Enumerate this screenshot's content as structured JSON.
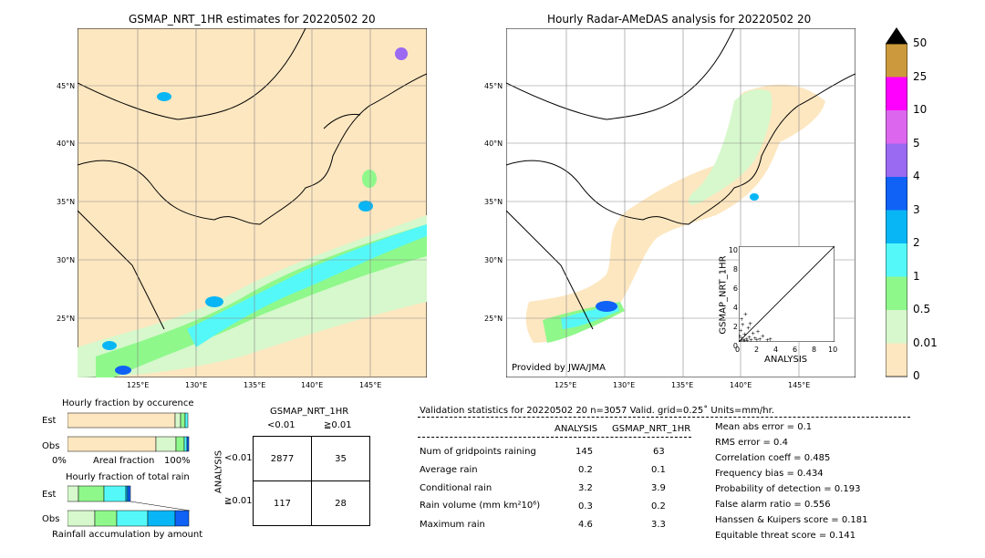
{
  "left_map": {
    "title": "GSMAP_NRT_1HR estimates for 20220502 20",
    "lat_labels": [
      "45°N",
      "40°N",
      "35°N",
      "30°N",
      "25°N"
    ],
    "lon_labels": [
      "125°E",
      "130°E",
      "135°E",
      "140°E",
      "145°E"
    ]
  },
  "right_map": {
    "title": "Hourly Radar-AMeDAS analysis for 20220502 20",
    "lat_labels": [
      "45°N",
      "40°N",
      "35°N",
      "30°N",
      "25°N"
    ],
    "lon_labels": [
      "125°E",
      "130°E",
      "135°E",
      "140°E",
      "145°E"
    ],
    "credit": "Provided by JWA/JMA"
  },
  "scatter_inset": {
    "xlabel": "ANALYSIS",
    "ylabel": "GSMAP_NRT_1HR",
    "ticks": [
      "0",
      "2",
      "4",
      "6",
      "8",
      "10"
    ],
    "y_ticks": [
      "0",
      "2",
      "4",
      "6",
      "8",
      "10"
    ]
  },
  "colorbar": {
    "labels": [
      "50",
      "25",
      "10",
      "5",
      "4",
      "3",
      "2",
      "1",
      "0.5",
      "0.01",
      "0"
    ],
    "colors": [
      "#cc9a3c",
      "#ff00ff",
      "#dd66ee",
      "#9a6af2",
      "#0f62f5",
      "#08b6f5",
      "#55f8f8",
      "#8ff88b",
      "#d6f8cc",
      "#fde7c0"
    ]
  },
  "fraction_occurrence": {
    "title": "Hourly fraction by occurence",
    "rows": [
      "Est",
      "Obs"
    ],
    "x_left": "0%",
    "x_mid": "Areal fraction",
    "x_right": "100%"
  },
  "fraction_total": {
    "title": "Hourly fraction of total rain",
    "rows": [
      "Est",
      "Obs"
    ],
    "footer": "Rainfall accumulation by amount"
  },
  "contingency": {
    "col_title": "GSMAP_NRT_1HR",
    "col_labels": [
      "<0.01",
      "≧0.01"
    ],
    "row_title": "ANALYSIS",
    "row_labels": [
      "<0.01",
      "≧0.01"
    ],
    "cells": [
      [
        "2877",
        "35"
      ],
      [
        "117",
        "28"
      ]
    ]
  },
  "validation": {
    "header": "Validation statistics for 20220502 20  n=3057 Valid. grid=0.25˚ Units=mm/hr.",
    "col1": "ANALYSIS",
    "col2": "GSMAP_NRT_1HR",
    "rows": [
      {
        "label": "Num of gridpoints raining",
        "a": "145",
        "b": "63"
      },
      {
        "label": "Average rain",
        "a": "0.2",
        "b": "0.1"
      },
      {
        "label": "Conditional rain",
        "a": "3.2",
        "b": "3.9"
      },
      {
        "label": "Rain volume (mm km²10⁶)",
        "a": "0.3",
        "b": "0.2"
      },
      {
        "label": "Maximum rain",
        "a": "4.6",
        "b": "3.3"
      }
    ],
    "scores": [
      "Mean abs error =    0.1",
      "RMS error =    0.4",
      "Correlation coeff =  0.485",
      "Frequency bias =  0.434",
      "Probability of detection =  0.193",
      "False alarm ratio =  0.556",
      "Hanssen & Kuipers score =  0.181",
      "Equitable threat score =  0.141"
    ]
  },
  "chart_data": {
    "type": "scatter",
    "title": "",
    "xlabel": "ANALYSIS",
    "ylabel": "GSMAP_NRT_1HR",
    "xlim": [
      0,
      10
    ],
    "ylim": [
      0,
      10
    ],
    "points": [
      [
        0.2,
        0.1
      ],
      [
        0.3,
        0.4
      ],
      [
        0.5,
        0.2
      ],
      [
        0.6,
        0.8
      ],
      [
        0.8,
        0.3
      ],
      [
        1.0,
        1.5
      ],
      [
        1.1,
        0.5
      ],
      [
        1.3,
        0.2
      ],
      [
        1.5,
        0.9
      ],
      [
        1.7,
        0.4
      ],
      [
        2.0,
        1.1
      ],
      [
        2.2,
        0.3
      ],
      [
        2.5,
        0.6
      ],
      [
        3.0,
        0.2
      ],
      [
        0.4,
        1.8
      ],
      [
        0.3,
        2.4
      ],
      [
        0.7,
        2.9
      ],
      [
        0.2,
        1.2
      ],
      [
        0.9,
        0.1
      ],
      [
        1.2,
        1.9
      ],
      [
        0.1,
        0.6
      ],
      [
        3.3,
        0.3
      ],
      [
        1.9,
        0.2
      ],
      [
        0.6,
        0.1
      ]
    ]
  }
}
